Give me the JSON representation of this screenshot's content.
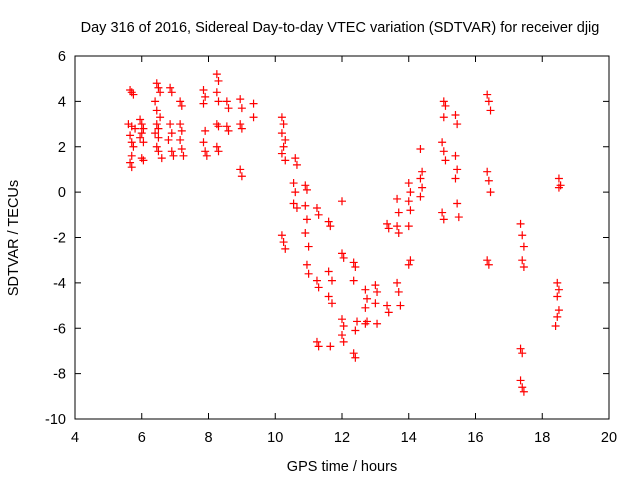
{
  "chart_data": {
    "type": "scatter",
    "title": "Day 316 of 2016, Sidereal Day-to-day VTEC variation (SDTVAR) for receiver djig",
    "xlabel": "GPS time / hours",
    "ylabel": "SDTVAR / TECUs",
    "xlim": [
      4,
      20
    ],
    "ylim": [
      -10,
      6
    ],
    "xticks": [
      "4",
      "6",
      "8",
      "10",
      "12",
      "14",
      "16",
      "18",
      "20"
    ],
    "yticks": [
      "-10",
      "-8",
      "-6",
      "-4",
      "-2",
      "0",
      "2",
      "4",
      "6"
    ],
    "grid": false,
    "marker": "+",
    "color": "#ff0000",
    "series": [
      {
        "name": "SDTVAR",
        "points": [
          [
            5.65,
            4.5
          ],
          [
            5.7,
            4.4
          ],
          [
            5.75,
            4.3
          ],
          [
            5.6,
            3.0
          ],
          [
            5.7,
            2.9
          ],
          [
            5.8,
            2.8
          ],
          [
            5.65,
            2.5
          ],
          [
            5.7,
            2.2
          ],
          [
            5.75,
            2.0
          ],
          [
            5.7,
            1.6
          ],
          [
            5.65,
            1.3
          ],
          [
            5.7,
            1.1
          ],
          [
            5.95,
            3.2
          ],
          [
            6.0,
            3.0
          ],
          [
            6.05,
            2.8
          ],
          [
            6.0,
            2.6
          ],
          [
            5.95,
            2.4
          ],
          [
            6.05,
            2.2
          ],
          [
            6.0,
            1.5
          ],
          [
            6.05,
            1.4
          ],
          [
            6.45,
            4.8
          ],
          [
            6.5,
            4.6
          ],
          [
            6.55,
            4.4
          ],
          [
            6.4,
            4.0
          ],
          [
            6.45,
            3.6
          ],
          [
            6.55,
            3.3
          ],
          [
            6.45,
            3.0
          ],
          [
            6.5,
            2.8
          ],
          [
            6.4,
            2.6
          ],
          [
            6.5,
            2.4
          ],
          [
            6.45,
            2.0
          ],
          [
            6.5,
            1.8
          ],
          [
            6.6,
            1.5
          ],
          [
            6.85,
            4.6
          ],
          [
            6.9,
            4.4
          ],
          [
            6.85,
            3.0
          ],
          [
            6.9,
            2.6
          ],
          [
            6.8,
            2.3
          ],
          [
            6.9,
            1.8
          ],
          [
            6.95,
            1.6
          ],
          [
            7.15,
            4.0
          ],
          [
            7.2,
            3.8
          ],
          [
            7.15,
            3.0
          ],
          [
            7.2,
            2.7
          ],
          [
            7.15,
            2.3
          ],
          [
            7.2,
            1.9
          ],
          [
            7.25,
            1.6
          ],
          [
            7.85,
            4.5
          ],
          [
            7.9,
            4.2
          ],
          [
            7.85,
            3.9
          ],
          [
            7.9,
            2.7
          ],
          [
            7.85,
            2.2
          ],
          [
            7.9,
            1.8
          ],
          [
            7.95,
            1.6
          ],
          [
            8.25,
            5.2
          ],
          [
            8.3,
            4.9
          ],
          [
            8.25,
            4.4
          ],
          [
            8.3,
            4.0
          ],
          [
            8.25,
            3.0
          ],
          [
            8.3,
            2.9
          ],
          [
            8.25,
            2.0
          ],
          [
            8.3,
            1.8
          ],
          [
            8.55,
            4.0
          ],
          [
            8.6,
            3.7
          ],
          [
            8.55,
            2.9
          ],
          [
            8.6,
            2.7
          ],
          [
            8.95,
            4.1
          ],
          [
            9.0,
            3.7
          ],
          [
            8.95,
            3.0
          ],
          [
            9.0,
            2.8
          ],
          [
            8.95,
            1.0
          ],
          [
            9.0,
            0.7
          ],
          [
            9.35,
            3.9
          ],
          [
            9.35,
            3.3
          ],
          [
            10.2,
            3.3
          ],
          [
            10.25,
            3.0
          ],
          [
            10.2,
            2.6
          ],
          [
            10.3,
            2.3
          ],
          [
            10.25,
            2.0
          ],
          [
            10.2,
            1.7
          ],
          [
            10.3,
            1.4
          ],
          [
            10.2,
            -1.9
          ],
          [
            10.25,
            -2.2
          ],
          [
            10.3,
            -2.5
          ],
          [
            10.6,
            1.5
          ],
          [
            10.65,
            1.2
          ],
          [
            10.55,
            0.4
          ],
          [
            10.6,
            0.0
          ],
          [
            10.55,
            -0.5
          ],
          [
            10.65,
            -0.7
          ],
          [
            10.9,
            0.3
          ],
          [
            10.95,
            0.1
          ],
          [
            10.9,
            -0.6
          ],
          [
            10.95,
            -1.2
          ],
          [
            10.9,
            -1.8
          ],
          [
            11.0,
            -2.4
          ],
          [
            10.95,
            -3.2
          ],
          [
            11.0,
            -3.6
          ],
          [
            11.25,
            -0.7
          ],
          [
            11.3,
            -1.0
          ],
          [
            11.25,
            -3.9
          ],
          [
            11.3,
            -4.2
          ],
          [
            11.25,
            -6.6
          ],
          [
            11.3,
            -6.8
          ],
          [
            11.6,
            -1.3
          ],
          [
            11.65,
            -1.5
          ],
          [
            11.6,
            -3.5
          ],
          [
            11.7,
            -3.9
          ],
          [
            11.6,
            -4.6
          ],
          [
            11.7,
            -4.9
          ],
          [
            11.65,
            -6.8
          ],
          [
            12.0,
            -0.4
          ],
          [
            12.0,
            -2.7
          ],
          [
            12.05,
            -2.9
          ],
          [
            12.0,
            -5.6
          ],
          [
            12.05,
            -5.9
          ],
          [
            12.0,
            -6.3
          ],
          [
            12.05,
            -6.6
          ],
          [
            12.35,
            -3.1
          ],
          [
            12.4,
            -3.3
          ],
          [
            12.35,
            -3.9
          ],
          [
            12.4,
            -6.1
          ],
          [
            12.45,
            -5.7
          ],
          [
            12.35,
            -7.1
          ],
          [
            12.4,
            -7.3
          ],
          [
            12.7,
            -4.3
          ],
          [
            12.75,
            -4.7
          ],
          [
            12.7,
            -5.1
          ],
          [
            12.75,
            -5.7
          ],
          [
            12.7,
            -5.8
          ],
          [
            13.0,
            -4.1
          ],
          [
            13.05,
            -4.4
          ],
          [
            13.0,
            -4.9
          ],
          [
            13.05,
            -5.8
          ],
          [
            13.35,
            -1.4
          ],
          [
            13.4,
            -1.6
          ],
          [
            13.35,
            -5.0
          ],
          [
            13.4,
            -5.3
          ],
          [
            13.65,
            -0.3
          ],
          [
            13.7,
            -0.9
          ],
          [
            13.65,
            -1.5
          ],
          [
            13.7,
            -1.8
          ],
          [
            13.65,
            -4.0
          ],
          [
            13.7,
            -4.4
          ],
          [
            13.75,
            -5.0
          ],
          [
            14.0,
            0.4
          ],
          [
            14.05,
            0.0
          ],
          [
            14.0,
            -0.4
          ],
          [
            14.05,
            -0.8
          ],
          [
            14.0,
            -1.5
          ],
          [
            14.05,
            -3.0
          ],
          [
            14.0,
            -3.2
          ],
          [
            14.35,
            1.9
          ],
          [
            14.4,
            0.9
          ],
          [
            14.35,
            0.6
          ],
          [
            14.4,
            0.2
          ],
          [
            14.35,
            -0.2
          ],
          [
            15.0,
            -0.9
          ],
          [
            15.05,
            -1.2
          ],
          [
            15.05,
            4.0
          ],
          [
            15.1,
            3.8
          ],
          [
            15.05,
            3.3
          ],
          [
            15.0,
            2.2
          ],
          [
            15.05,
            1.8
          ],
          [
            15.1,
            1.4
          ],
          [
            15.4,
            3.4
          ],
          [
            15.45,
            3.0
          ],
          [
            15.4,
            1.6
          ],
          [
            15.45,
            1.0
          ],
          [
            15.4,
            0.6
          ],
          [
            15.45,
            -0.5
          ],
          [
            15.5,
            -1.1
          ],
          [
            16.35,
            4.3
          ],
          [
            16.4,
            4.0
          ],
          [
            16.45,
            3.6
          ],
          [
            16.35,
            0.9
          ],
          [
            16.4,
            0.5
          ],
          [
            16.45,
            0.0
          ],
          [
            16.35,
            -3.0
          ],
          [
            16.4,
            -3.2
          ],
          [
            17.35,
            -1.4
          ],
          [
            17.4,
            -1.9
          ],
          [
            17.45,
            -2.4
          ],
          [
            17.4,
            -3.0
          ],
          [
            17.45,
            -3.3
          ],
          [
            17.35,
            -6.9
          ],
          [
            17.4,
            -7.1
          ],
          [
            17.35,
            -8.3
          ],
          [
            17.4,
            -8.6
          ],
          [
            17.45,
            -8.8
          ],
          [
            18.5,
            0.6
          ],
          [
            18.55,
            0.3
          ],
          [
            18.5,
            0.2
          ],
          [
            18.45,
            -4.0
          ],
          [
            18.5,
            -4.3
          ],
          [
            18.45,
            -4.6
          ],
          [
            18.5,
            -5.2
          ],
          [
            18.45,
            -5.5
          ],
          [
            18.4,
            -5.9
          ]
        ]
      }
    ]
  }
}
